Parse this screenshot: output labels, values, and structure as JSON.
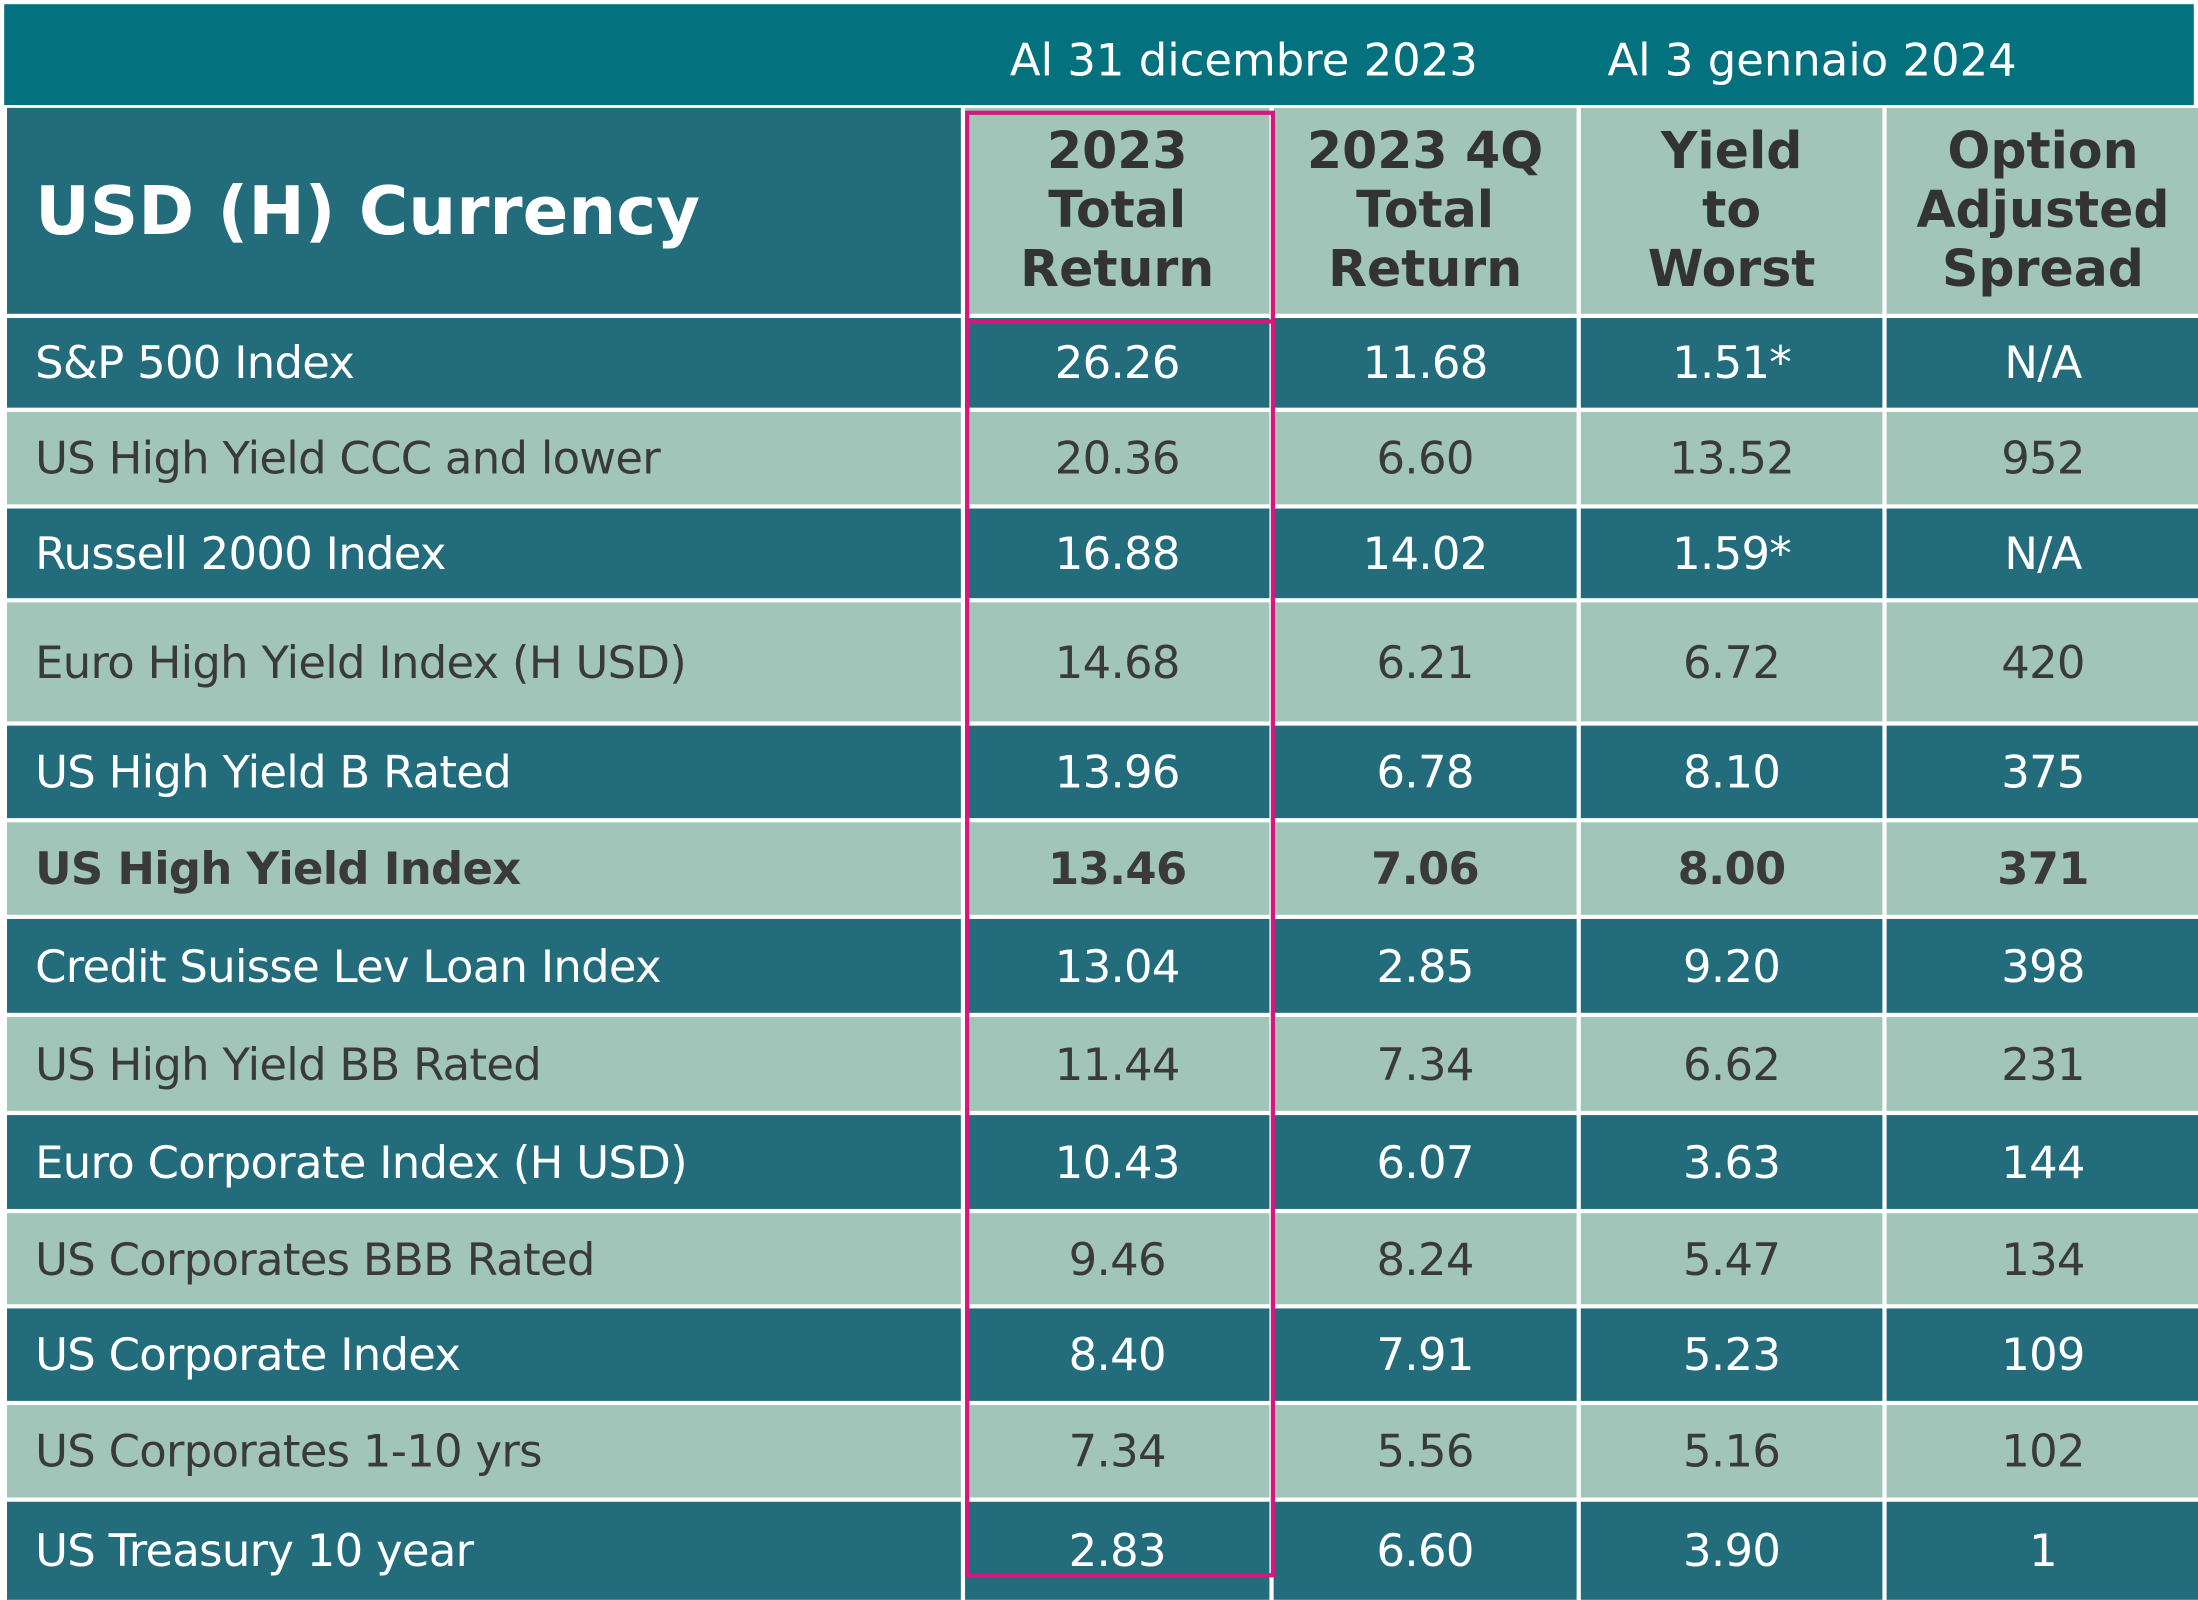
{
  "banner": {
    "date_left": "Al 31 dicembre 2023",
    "date_right": "Al 3 gennaio 2024"
  },
  "table": {
    "title": "USD (H) Currency",
    "columns": [
      [
        "2023",
        "Total",
        "Return"
      ],
      [
        "2023 4Q",
        "Total",
        "Return"
      ],
      [
        "Yield",
        "to",
        "Worst"
      ],
      [
        "Option",
        "Adjusted",
        "Spread"
      ]
    ],
    "rows": [
      {
        "name": "S&P 500 Index",
        "values": [
          "26.26",
          "11.68",
          "1.51*",
          "N/A"
        ]
      },
      {
        "name": "US High Yield CCC and lower",
        "values": [
          "20.36",
          "6.60",
          "13.52",
          "952"
        ]
      },
      {
        "name": "Russell 2000 Index",
        "values": [
          "16.88",
          "14.02",
          "1.59*",
          "N/A"
        ]
      },
      {
        "name": "Euro High Yield Index (H USD)",
        "values": [
          "14.68",
          "6.21",
          "6.72",
          "420"
        ]
      },
      {
        "name": "US High Yield B Rated",
        "values": [
          "13.96",
          "6.78",
          "8.10",
          "375"
        ]
      },
      {
        "name": "US High Yield Index",
        "values": [
          "13.46",
          "7.06",
          "8.00",
          "371"
        ]
      },
      {
        "name": "Credit Suisse Lev Loan Index",
        "values": [
          "13.04",
          "2.85",
          "9.20",
          "398"
        ]
      },
      {
        "name": "US High Yield BB Rated",
        "values": [
          "11.44",
          "7.34",
          "6.62",
          "231"
        ]
      },
      {
        "name": "Euro Corporate Index (H USD)",
        "values": [
          "10.43",
          "6.07",
          "3.63",
          "144"
        ]
      },
      {
        "name": "US Corporates BBB Rated",
        "values": [
          "9.46",
          "8.24",
          "5.47",
          "134"
        ]
      },
      {
        "name": "US Corporate Index",
        "values": [
          "8.40",
          "7.91",
          "5.23",
          "109"
        ]
      },
      {
        "name": "US Corporates 1-10 yrs",
        "values": [
          "7.34",
          "5.56",
          "5.16",
          "102"
        ]
      },
      {
        "name": "US Treasury 10 year",
        "values": [
          "2.83",
          "6.60",
          "3.90",
          "1"
        ]
      }
    ]
  },
  "colors": {
    "banner": "#04717e",
    "dark_row": "#236c7b",
    "light_row": "#a1c6b9",
    "highlight": "#d6177e"
  }
}
